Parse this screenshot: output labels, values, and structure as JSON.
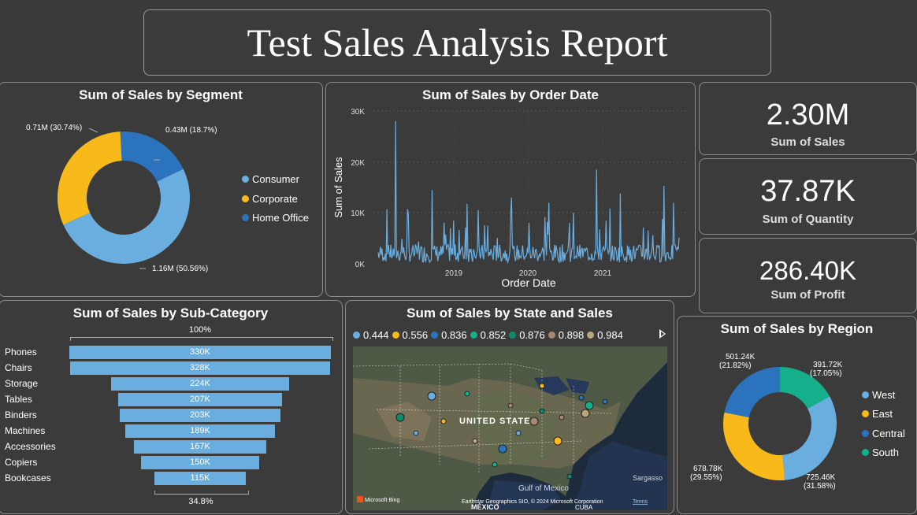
{
  "title": "Test Sales Analysis Report",
  "segment": {
    "title": "Sum of Sales by Segment",
    "legend": [
      {
        "label": "Consumer",
        "color": "#6aaee0"
      },
      {
        "label": "Corporate",
        "color": "#f8b91b"
      },
      {
        "label": "Home Office",
        "color": "#2b74bd"
      }
    ],
    "labels": {
      "consumer": "1.16M (50.56%)",
      "corporate": "0.71M (30.74%)",
      "home_office": "0.43M (18.7%)"
    }
  },
  "order_date": {
    "title": "Sum of Sales by Order Date",
    "xlabel": "Order Date",
    "ylabel": "Sum of Sales",
    "yticks": [
      "30K",
      "20K",
      "10K",
      "0K"
    ],
    "xticks": [
      "2019",
      "2020",
      "2021"
    ]
  },
  "kpis": [
    {
      "value": "2.30M",
      "label": "Sum of Sales"
    },
    {
      "value": "37.87K",
      "label": "Sum of Quantity"
    },
    {
      "value": "286.40K",
      "label": "Sum of Profit"
    }
  ],
  "subcategory": {
    "title": "Sum of Sales by Sub-Category",
    "top_pct": "100%",
    "bottom_pct": "34.8%",
    "items": [
      {
        "label": "Phones",
        "display": "330K"
      },
      {
        "label": "Chairs",
        "display": "328K"
      },
      {
        "label": "Storage",
        "display": "224K"
      },
      {
        "label": "Tables",
        "display": "207K"
      },
      {
        "label": "Binders",
        "display": "203K"
      },
      {
        "label": "Machines",
        "display": "189K"
      },
      {
        "label": "Accessories",
        "display": "167K"
      },
      {
        "label": "Copiers",
        "display": "150K"
      },
      {
        "label": "Bookcases",
        "display": "115K"
      }
    ]
  },
  "map": {
    "title": "Sum of Sales by State and Sales",
    "legend": [
      {
        "label": "0.444",
        "color": "#6aaee0"
      },
      {
        "label": "0.556",
        "color": "#f8b91b"
      },
      {
        "label": "0.836",
        "color": "#2b74bd"
      },
      {
        "label": "0.852",
        "color": "#14b08c"
      },
      {
        "label": "0.876",
        "color": "#0f8a6c"
      },
      {
        "label": "0.898",
        "color": "#a68770"
      },
      {
        "label": "0.984",
        "color": "#b9a77b"
      }
    ],
    "country_label": "UNITED STATE",
    "gulf_label": "Gulf of\nMexico",
    "mexico_label": "MÉXICO",
    "cuba_label": "CUBA",
    "sargasso_label": "Sargasso",
    "bing_label": "Microsoft Bing",
    "attribution": "Earthstar Geographics SIO, © 2024 Microsoft Corporation",
    "terms": "Terms"
  },
  "region": {
    "title": "Sum of Sales by Region",
    "legend": [
      {
        "label": "West",
        "color": "#6aaee0"
      },
      {
        "label": "East",
        "color": "#f8b91b"
      },
      {
        "label": "Central",
        "color": "#2b74bd"
      },
      {
        "label": "South",
        "color": "#14b08c"
      }
    ],
    "labels": {
      "west_1": "725.46K",
      "west_2": "(31.58%)",
      "east_1": "678.78K",
      "east_2": "(29.55%)",
      "central_1": "501.24K",
      "central_2": "(21.82%)",
      "south_1": "391.72K",
      "south_2": "(17.05%)"
    }
  },
  "chart_data": [
    {
      "type": "pie",
      "title": "Sum of Sales by Segment",
      "categories": [
        "Consumer",
        "Corporate",
        "Home Office"
      ],
      "values": [
        1160000,
        710000,
        430000
      ],
      "percent": [
        50.56,
        30.74,
        18.7
      ]
    },
    {
      "type": "line",
      "title": "Sum of Sales by Order Date",
      "xlabel": "Order Date",
      "ylabel": "Sum of Sales",
      "ylim": [
        0,
        30000
      ],
      "xlim": [
        "2018-01-01",
        "2021-12-31"
      ]
    },
    {
      "type": "bar",
      "title": "Sum of Sales by Sub-Category",
      "categories": [
        "Phones",
        "Chairs",
        "Storage",
        "Tables",
        "Binders",
        "Machines",
        "Accessories",
        "Copiers",
        "Bookcases"
      ],
      "values": [
        330000,
        328000,
        224000,
        207000,
        203000,
        189000,
        167000,
        150000,
        115000
      ]
    },
    {
      "type": "pie",
      "title": "Sum of Sales by Region",
      "categories": [
        "West",
        "East",
        "Central",
        "South"
      ],
      "values": [
        725460,
        678780,
        501240,
        391720
      ],
      "percent": [
        31.58,
        29.55,
        21.82,
        17.05
      ]
    }
  ]
}
